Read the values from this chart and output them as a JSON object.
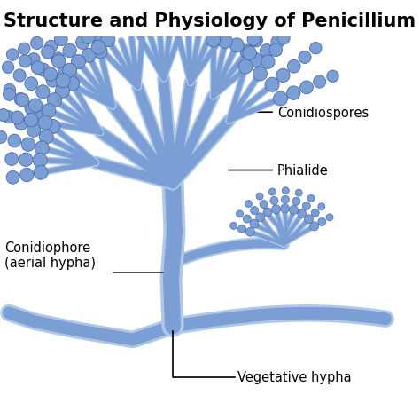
{
  "title": "Structure and Physiology of Penicillium",
  "title_fontsize": 15,
  "title_fontweight": "bold",
  "background_color": "#ffffff",
  "mold_color": "#7b9fd4",
  "mold_color_dark": "#4a6aaa",
  "mold_color_light": "#b0c8e8",
  "label_color": "#000000",
  "label_fontsize": 10.5,
  "labels": {
    "conidiospores": "Conidiospores",
    "phialide": "Phialide",
    "conidiophore": "Conidiophore\n(aerial hypha)",
    "vegetative": "Vegetative hypha"
  }
}
